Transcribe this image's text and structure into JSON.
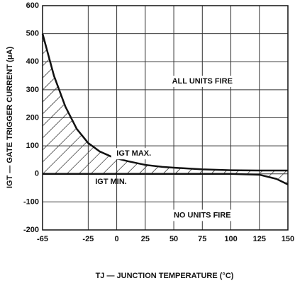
{
  "chart_data": {
    "type": "line",
    "xlabel": "TJ — JUNCTION TEMPERATURE (°C)",
    "ylabel": "IGT — GATE TRIGGER CURRENT (μA)",
    "annotations": [
      "ALL UNITS FIRE",
      "NO UNITS FIRE"
    ],
    "x": [
      -65,
      -55,
      -45,
      -35,
      -25,
      -15,
      -5,
      0,
      10,
      25,
      40,
      50,
      75,
      100,
      125,
      140,
      150
    ],
    "series": [
      {
        "name": "IGT MAX.",
        "color": "#111111",
        "values": [
          500,
          350,
          240,
          160,
          110,
          80,
          62,
          55,
          45,
          32,
          25,
          22,
          16,
          13,
          12,
          12,
          12
        ]
      },
      {
        "name": "IGT MIN.",
        "color": "#111111",
        "values": [
          0,
          0,
          0,
          0,
          0,
          0,
          0,
          0,
          0,
          0,
          0,
          0,
          0,
          0,
          -3,
          -18,
          -38
        ]
      }
    ],
    "xlim": [
      -65,
      150
    ],
    "xticks": [
      -65,
      -25,
      0,
      25,
      50,
      75,
      100,
      125,
      150
    ],
    "ylim": [
      -200,
      600
    ],
    "yticks": [
      -200,
      -100,
      0,
      100,
      200,
      300,
      400,
      500,
      600
    ],
    "grid": true
  }
}
